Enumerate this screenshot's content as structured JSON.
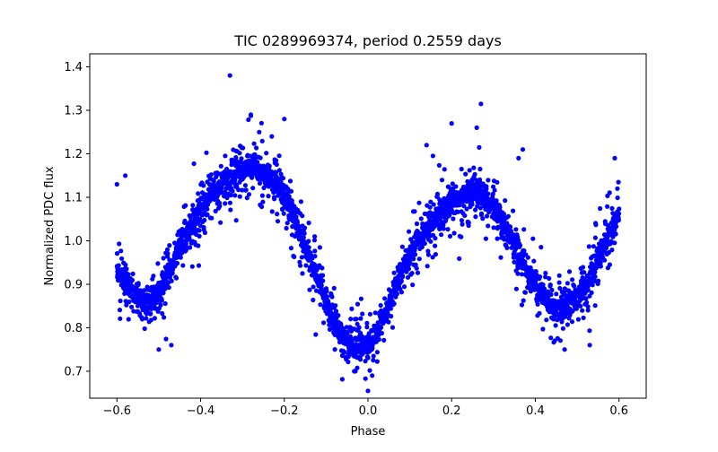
{
  "chart_data": {
    "type": "scatter",
    "title": "TIC 0289969374, period 0.2559 days",
    "xlabel": "Phase",
    "ylabel": "Normalized PDC flux",
    "xlim": [
      -0.665,
      0.665
    ],
    "ylim": [
      0.638,
      1.43
    ],
    "xticks": [
      -0.6,
      -0.4,
      -0.2,
      0.0,
      0.2,
      0.4,
      0.6
    ],
    "xtick_labels": [
      "−0.6",
      "−0.4",
      "−0.2",
      "0.0",
      "0.2",
      "0.4",
      "0.6"
    ],
    "yticks": [
      0.7,
      0.8,
      0.9,
      1.0,
      1.1,
      1.2,
      1.3,
      1.4
    ],
    "ytick_labels": [
      "0.7",
      "0.8",
      "0.9",
      "1.0",
      "1.1",
      "1.2",
      "1.3",
      "1.4"
    ],
    "grid": false,
    "marker_color": "#0000ff",
    "series": [
      {
        "x": [
          -0.6,
          -0.58,
          -0.56,
          -0.54,
          -0.52,
          -0.5,
          -0.48,
          -0.46,
          -0.44,
          -0.42,
          -0.4,
          -0.38,
          -0.36,
          -0.34,
          -0.32,
          -0.3,
          -0.28,
          -0.26,
          -0.24,
          -0.22,
          -0.2,
          -0.18,
          -0.16,
          -0.14,
          -0.12,
          -0.1,
          -0.08,
          -0.06,
          -0.04,
          -0.02,
          0.0,
          0.02,
          0.04,
          0.06,
          0.08,
          0.1,
          0.12,
          0.14,
          0.16,
          0.18,
          0.2,
          0.22,
          0.24,
          0.26,
          0.28,
          0.3,
          0.32,
          0.34,
          0.36,
          0.38,
          0.4,
          0.42,
          0.44,
          0.46,
          0.48,
          0.5,
          0.52,
          0.54,
          0.56,
          0.58,
          0.6
        ],
        "y": [
          0.93,
          0.9,
          0.88,
          0.86,
          0.86,
          0.88,
          0.92,
          0.96,
          1.0,
          1.04,
          1.07,
          1.1,
          1.12,
          1.14,
          1.15,
          1.16,
          1.17,
          1.16,
          1.15,
          1.13,
          1.1,
          1.06,
          1.01,
          0.96,
          0.91,
          0.86,
          0.81,
          0.78,
          0.76,
          0.755,
          0.76,
          0.79,
          0.83,
          0.88,
          0.93,
          0.97,
          1.0,
          1.03,
          1.05,
          1.07,
          1.09,
          1.1,
          1.11,
          1.11,
          1.1,
          1.08,
          1.05,
          1.01,
          0.97,
          0.93,
          0.9,
          0.87,
          0.85,
          0.84,
          0.85,
          0.87,
          0.9,
          0.94,
          0.98,
          1.02,
          1.06
        ]
      }
    ],
    "outliers": {
      "x": [
        -0.33,
        0.27,
        -0.28,
        0.2,
        0.26,
        -0.26,
        -0.2,
        -0.03,
        0.01,
        0.0,
        -0.5,
        -0.47,
        -0.6,
        -0.58,
        0.59,
        0.47,
        0.53,
        0.36,
        0.37,
        -0.23,
        0.14
      ],
      "y": [
        1.38,
        1.315,
        1.29,
        1.27,
        1.26,
        1.25,
        1.28,
        0.7,
        0.69,
        0.655,
        0.75,
        0.76,
        1.13,
        1.15,
        1.19,
        0.75,
        0.76,
        1.19,
        1.21,
        1.24,
        1.22
      ]
    }
  }
}
